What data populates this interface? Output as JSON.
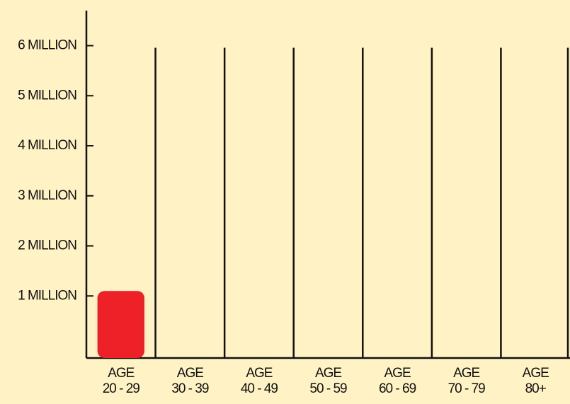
{
  "chart_data": {
    "type": "bar",
    "categories": [
      [
        "AGE",
        "20 - 29"
      ],
      [
        "AGE",
        "30 - 39"
      ],
      [
        "AGE",
        "40 - 49"
      ],
      [
        "AGE",
        "50 - 59"
      ],
      [
        "AGE",
        "60 - 69"
      ],
      [
        "AGE",
        "70 - 79"
      ],
      [
        "AGE",
        "80+"
      ]
    ],
    "values": [
      1100000,
      null,
      null,
      null,
      null,
      null,
      null
    ],
    "color": "#ee2028",
    "ylim": [
      -240000,
      6700000
    ],
    "yticks": [
      {
        "value": 1000000,
        "label": "1 MILLION"
      },
      {
        "value": 2000000,
        "label": "2 MILLION"
      },
      {
        "value": 3000000,
        "label": "3 MILLION"
      },
      {
        "value": 4000000,
        "label": "4 MILLION"
      },
      {
        "value": 5000000,
        "label": "5 MILLION"
      },
      {
        "value": 6000000,
        "label": "6 MILLION"
      }
    ]
  }
}
